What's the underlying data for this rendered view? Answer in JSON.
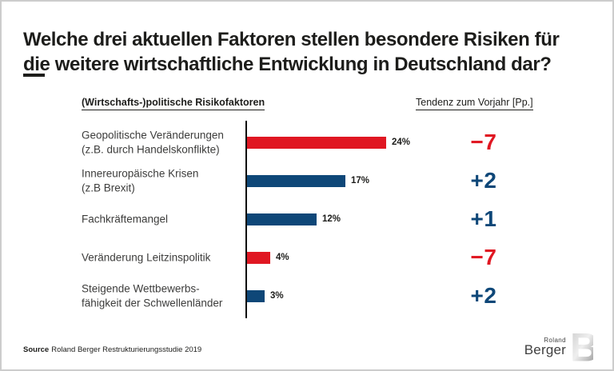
{
  "title": {
    "line1": "Welche drei aktuellen Faktoren stellen besondere Risiken für",
    "line2": "die weitere wirtschaftliche Entwicklung in Deutschland dar?"
  },
  "columns": {
    "left_header": "(Wirtschafts-)politische Risikofaktoren",
    "right_header": "Tendenz zum Vorjahr [Pp.]"
  },
  "chart_data": {
    "type": "bar",
    "orientation": "horizontal",
    "title": "(Wirtschafts-)politische Risikofaktoren",
    "unit": "%",
    "x_max": 24,
    "grid": false,
    "legend": false,
    "rows": [
      {
        "category": "Geopolitische Veränderungen\n(z.B. durch Handelskonflikte)",
        "value": 24,
        "value_label": "24%",
        "color": "red",
        "tendency": "−7",
        "tendency_color": "red"
      },
      {
        "category": "Innereuropäische Krisen\n(z.B Brexit)",
        "value": 17,
        "value_label": "17%",
        "color": "blue",
        "tendency": "+2",
        "tendency_color": "blue"
      },
      {
        "category": "Fachkräftemangel",
        "value": 12,
        "value_label": "12%",
        "color": "blue",
        "tendency": "+1",
        "tendency_color": "blue"
      },
      {
        "category": "Veränderung Leitzinspolitik",
        "value": 4,
        "value_label": "4%",
        "color": "red",
        "tendency": "−7",
        "tendency_color": "red"
      },
      {
        "category": "Steigende Wettbewerbs-\nfähigkeit der Schwellenländer",
        "value": 3,
        "value_label": "3%",
        "color": "blue",
        "tendency": "+2",
        "tendency_color": "blue"
      }
    ]
  },
  "source": {
    "label": "Source",
    "text": "Roland Berger Restrukturierungsstudie 2019"
  },
  "logo": {
    "name": "Roland Berger",
    "line1": "Roland",
    "line2": "Berger",
    "monogram": "B"
  },
  "colors": {
    "red": "#E01722",
    "blue": "#0E4778",
    "text": "#1D1D1B"
  }
}
